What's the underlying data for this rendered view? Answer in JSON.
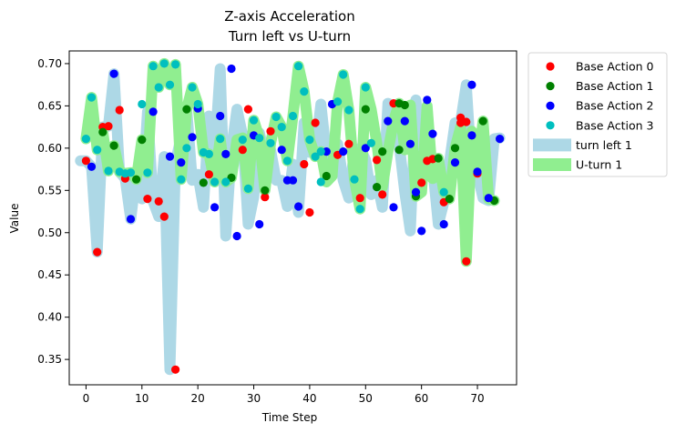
{
  "chart_data": {
    "type": "line+scatter",
    "title": "Z-axis Acceleration",
    "subtitle": "Turn left vs U-turn",
    "xlabel": "Time Step",
    "ylabel": "Value",
    "xlim": [
      -3,
      77
    ],
    "ylim": [
      0.32,
      0.715
    ],
    "xticks": [
      0,
      10,
      20,
      30,
      40,
      50,
      60,
      70
    ],
    "yticks": [
      0.35,
      0.4,
      0.45,
      0.5,
      0.55,
      0.6,
      0.65,
      0.7
    ],
    "ytick_labels": [
      "0.35",
      "0.40",
      "0.45",
      "0.50",
      "0.55",
      "0.60",
      "0.65",
      "0.70"
    ],
    "grid": false,
    "legend_position": "outside-right-top",
    "lines": [
      {
        "name": "turn left 1",
        "color": "#add8e6",
        "x": [
          -1,
          0,
          1,
          2,
          3,
          4,
          5,
          6,
          7,
          8,
          9,
          10,
          11,
          12,
          13,
          14,
          15,
          16,
          17,
          18,
          19,
          20,
          21,
          22,
          23,
          24,
          25,
          26,
          27,
          28,
          29,
          30,
          31,
          32,
          33,
          34,
          35,
          36,
          37,
          38,
          39,
          40,
          41,
          42,
          43,
          44,
          45,
          46,
          47,
          48,
          49,
          50,
          51,
          52,
          53,
          54,
          55,
          56,
          57,
          58,
          59,
          60,
          61,
          62,
          63,
          64,
          65,
          66,
          67,
          68,
          69,
          70,
          71,
          72,
          73,
          74
        ],
        "y": [
          0.585,
          0.585,
          0.578,
          0.477,
          0.625,
          0.626,
          0.688,
          0.572,
          0.564,
          0.516,
          0.57,
          0.54,
          0.643,
          0.537,
          0.519,
          0.59,
          0.338,
          0.583,
          0.613,
          0.647,
          0.562,
          0.569,
          0.53,
          0.638,
          0.593,
          0.694,
          0.496,
          0.598,
          0.646,
          0.615,
          0.51,
          0.542,
          0.618,
          0.591,
          0.598,
          0.562,
          0.562,
          0.531,
          0.581,
          0.524,
          0.63,
          0.595,
          0.596,
          0.652,
          0.592,
          0.596,
          0.605,
          0.562,
          0.541,
          0.597,
          0.6,
          0.586,
          0.545,
          0.562,
          0.53,
          0.653,
          0.632,
          0.605,
          0.548,
          0.502,
          0.657,
          0.585,
          0.617,
          0.578,
          0.51,
          0.536,
          0.583,
          0.63,
          0.631,
          0.675,
          0.57,
          0.57,
          0.541,
          0.538,
          0.611,
          0.612
        ]
      },
      {
        "name": "U-turn 1",
        "color": "#90ee90",
        "x": [
          0,
          1,
          2,
          3,
          4,
          5,
          6,
          7,
          8,
          9,
          10,
          11,
          12,
          13,
          14,
          15,
          16,
          17,
          18,
          19,
          20,
          21,
          22,
          23,
          24,
          25,
          26,
          27,
          28,
          29,
          30,
          31,
          32,
          33,
          34,
          35,
          36,
          37,
          38,
          39,
          40,
          41,
          42,
          43,
          44,
          45,
          46,
          47,
          48,
          49,
          50,
          51,
          52,
          53,
          54,
          55,
          56,
          57,
          58,
          59,
          60,
          61,
          62,
          63,
          64,
          65,
          66,
          67,
          68,
          69,
          70,
          71,
          72,
          73
        ],
        "y": [
          0.611,
          0.66,
          0.598,
          0.619,
          0.573,
          0.603,
          0.572,
          0.57,
          0.571,
          0.563,
          0.61,
          0.571,
          0.697,
          0.672,
          0.7,
          0.675,
          0.699,
          0.563,
          0.646,
          0.672,
          0.652,
          0.595,
          0.593,
          0.56,
          0.611,
          0.56,
          0.565,
          0.61,
          0.612,
          0.552,
          0.633,
          0.612,
          0.55,
          0.606,
          0.637,
          0.625,
          0.585,
          0.638,
          0.697,
          0.667,
          0.61,
          0.59,
          0.596,
          0.56,
          0.567,
          0.655,
          0.687,
          0.645,
          0.563,
          0.528,
          0.672,
          0.646,
          0.606,
          0.554,
          0.596,
          0.632,
          0.653,
          0.598,
          0.651,
          0.543,
          0.548,
          0.65,
          0.564,
          0.588,
          0.548,
          0.54,
          0.6,
          0.625,
          0.466,
          0.62,
          0.572,
          0.632,
          0.54,
          0.538
        ]
      }
    ],
    "scatter_series": [
      {
        "name": "Base Action 0",
        "color": "#ff0000",
        "points": [
          [
            0,
            0.585
          ],
          [
            2,
            0.477
          ],
          [
            3,
            0.625
          ],
          [
            4,
            0.626
          ],
          [
            6,
            0.645
          ],
          [
            7,
            0.564
          ],
          [
            11,
            0.54
          ],
          [
            13,
            0.537
          ],
          [
            14,
            0.519
          ],
          [
            16,
            0.338
          ],
          [
            22,
            0.569
          ],
          [
            28,
            0.598
          ],
          [
            29,
            0.646
          ],
          [
            32,
            0.542
          ],
          [
            33,
            0.62
          ],
          [
            39,
            0.581
          ],
          [
            40,
            0.524
          ],
          [
            41,
            0.63
          ],
          [
            45,
            0.592
          ],
          [
            47,
            0.605
          ],
          [
            49,
            0.541
          ],
          [
            52,
            0.586
          ],
          [
            53,
            0.545
          ],
          [
            55,
            0.653
          ],
          [
            60,
            0.559
          ],
          [
            61,
            0.585
          ],
          [
            62,
            0.587
          ],
          [
            64,
            0.536
          ],
          [
            67,
            0.63
          ],
          [
            67,
            0.636
          ],
          [
            68,
            0.631
          ],
          [
            68,
            0.466
          ],
          [
            70,
            0.57
          ]
        ]
      },
      {
        "name": "Base Action 1",
        "color": "#008000",
        "points": [
          [
            3,
            0.619
          ],
          [
            5,
            0.603
          ],
          [
            9,
            0.563
          ],
          [
            10,
            0.61
          ],
          [
            18,
            0.646
          ],
          [
            21,
            0.559
          ],
          [
            26,
            0.565
          ],
          [
            32,
            0.55
          ],
          [
            43,
            0.567
          ],
          [
            50,
            0.646
          ],
          [
            52,
            0.554
          ],
          [
            53,
            0.596
          ],
          [
            56,
            0.598
          ],
          [
            56,
            0.653
          ],
          [
            57,
            0.651
          ],
          [
            59,
            0.543
          ],
          [
            63,
            0.588
          ],
          [
            65,
            0.54
          ],
          [
            66,
            0.6
          ],
          [
            71,
            0.632
          ],
          [
            73,
            0.538
          ]
        ]
      },
      {
        "name": "Base Action 2",
        "color": "#0000ff",
        "points": [
          [
            1,
            0.578
          ],
          [
            5,
            0.688
          ],
          [
            8,
            0.516
          ],
          [
            12,
            0.643
          ],
          [
            15,
            0.59
          ],
          [
            17,
            0.583
          ],
          [
            19,
            0.613
          ],
          [
            20,
            0.647
          ],
          [
            23,
            0.53
          ],
          [
            24,
            0.638
          ],
          [
            25,
            0.593
          ],
          [
            26,
            0.694
          ],
          [
            27,
            0.496
          ],
          [
            30,
            0.615
          ],
          [
            31,
            0.51
          ],
          [
            35,
            0.598
          ],
          [
            36,
            0.562
          ],
          [
            37,
            0.562
          ],
          [
            38,
            0.531
          ],
          [
            43,
            0.596
          ],
          [
            44,
            0.652
          ],
          [
            46,
            0.596
          ],
          [
            50,
            0.6
          ],
          [
            54,
            0.632
          ],
          [
            55,
            0.53
          ],
          [
            57,
            0.632
          ],
          [
            58,
            0.605
          ],
          [
            59,
            0.548
          ],
          [
            60,
            0.502
          ],
          [
            61,
            0.657
          ],
          [
            62,
            0.617
          ],
          [
            64,
            0.51
          ],
          [
            66,
            0.583
          ],
          [
            69,
            0.675
          ],
          [
            69,
            0.615
          ],
          [
            70,
            0.572
          ],
          [
            72,
            0.541
          ],
          [
            74,
            0.611
          ]
        ]
      },
      {
        "name": "Base Action 3",
        "color": "#00bfbf",
        "points": [
          [
            0,
            0.611
          ],
          [
            1,
            0.66
          ],
          [
            2,
            0.598
          ],
          [
            4,
            0.573
          ],
          [
            6,
            0.572
          ],
          [
            7,
            0.57
          ],
          [
            8,
            0.571
          ],
          [
            10,
            0.652
          ],
          [
            11,
            0.571
          ],
          [
            12,
            0.697
          ],
          [
            13,
            0.672
          ],
          [
            14,
            0.7
          ],
          [
            15,
            0.675
          ],
          [
            16,
            0.699
          ],
          [
            17,
            0.563
          ],
          [
            18,
            0.6
          ],
          [
            19,
            0.672
          ],
          [
            20,
            0.652
          ],
          [
            21,
            0.595
          ],
          [
            22,
            0.593
          ],
          [
            23,
            0.56
          ],
          [
            24,
            0.611
          ],
          [
            25,
            0.56
          ],
          [
            28,
            0.61
          ],
          [
            29,
            0.552
          ],
          [
            30,
            0.633
          ],
          [
            31,
            0.612
          ],
          [
            33,
            0.606
          ],
          [
            34,
            0.637
          ],
          [
            35,
            0.625
          ],
          [
            36,
            0.585
          ],
          [
            37,
            0.638
          ],
          [
            38,
            0.697
          ],
          [
            39,
            0.667
          ],
          [
            40,
            0.61
          ],
          [
            41,
            0.59
          ],
          [
            42,
            0.596
          ],
          [
            42,
            0.56
          ],
          [
            45,
            0.655
          ],
          [
            46,
            0.687
          ],
          [
            47,
            0.645
          ],
          [
            48,
            0.563
          ],
          [
            49,
            0.528
          ],
          [
            50,
            0.672
          ],
          [
            51,
            0.606
          ],
          [
            64,
            0.548
          ]
        ]
      }
    ],
    "legend": [
      "Base Action 0",
      "Base Action 1",
      "Base Action 2",
      "Base Action 3",
      "turn left 1",
      "U-turn 1"
    ]
  }
}
